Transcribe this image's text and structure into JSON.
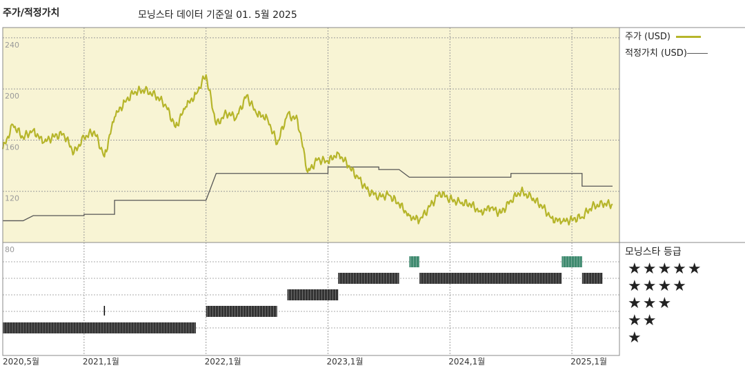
{
  "header": {
    "title": "주가/적정가치",
    "subtitle": "모닝스타 데이터 기준일 01. 5월 2025"
  },
  "legend": {
    "price_label": "주가 (USD)",
    "fair_value_label": "적정가치 (USD)"
  },
  "rating": {
    "title": "모닝스타 등급",
    "levels": [
      "★★★★★",
      "★★★★",
      "★★★",
      "★★",
      "★"
    ]
  },
  "colors": {
    "panel_bg": "#f8f4d4",
    "price": "#b6b52a",
    "fair_value": "#555555",
    "rating_bar": "#333333",
    "rating_5star": "#3f8a6f"
  },
  "chart_data": {
    "type": "line",
    "x_start": "2020-05",
    "x_end": "2025-05",
    "x_ticks": [
      "2020,5월",
      "2021,1월",
      "2022,1월",
      "2023,1월",
      "2024,1월",
      "2025,1월"
    ],
    "y_ticks": [
      80,
      120,
      160,
      200,
      240
    ],
    "ylim": [
      80,
      248
    ],
    "grid": true,
    "legend_position": "right",
    "series": [
      {
        "name": "주가 (USD)",
        "points": [
          [
            "2020-05",
            153
          ],
          [
            "2020-06",
            172
          ],
          [
            "2020-07",
            162
          ],
          [
            "2020-08",
            168
          ],
          [
            "2020-09",
            158
          ],
          [
            "2020-10",
            163
          ],
          [
            "2020-11",
            165
          ],
          [
            "2020-12",
            150
          ],
          [
            "2021-01",
            162
          ],
          [
            "2021-02",
            167
          ],
          [
            "2021-03",
            147
          ],
          [
            "2021-04",
            178
          ],
          [
            "2021-05",
            190
          ],
          [
            "2021-06",
            198
          ],
          [
            "2021-07",
            199
          ],
          [
            "2021-08",
            195
          ],
          [
            "2021-09",
            188
          ],
          [
            "2021-10",
            170
          ],
          [
            "2021-11",
            186
          ],
          [
            "2021-12",
            196
          ],
          [
            "2022-01",
            211
          ],
          [
            "2022-02",
            172
          ],
          [
            "2022-03",
            181
          ],
          [
            "2022-04",
            178
          ],
          [
            "2022-05",
            195
          ],
          [
            "2022-06",
            180
          ],
          [
            "2022-07",
            178
          ],
          [
            "2022-08",
            157
          ],
          [
            "2022-09",
            180
          ],
          [
            "2022-10",
            176
          ],
          [
            "2022-11",
            135
          ],
          [
            "2022-12",
            145
          ],
          [
            "2023-01",
            143
          ],
          [
            "2023-02",
            150
          ],
          [
            "2023-03",
            140
          ],
          [
            "2023-04",
            130
          ],
          [
            "2023-05",
            120
          ],
          [
            "2023-06",
            116
          ],
          [
            "2023-07",
            117
          ],
          [
            "2023-08",
            110
          ],
          [
            "2023-09",
            101
          ],
          [
            "2023-10",
            97
          ],
          [
            "2023-11",
            108
          ],
          [
            "2023-12",
            119
          ],
          [
            "2024-01",
            114
          ],
          [
            "2024-02",
            111
          ],
          [
            "2024-03",
            110
          ],
          [
            "2024-04",
            104
          ],
          [
            "2024-05",
            107
          ],
          [
            "2024-06",
            103
          ],
          [
            "2024-07",
            113
          ],
          [
            "2024-08",
            120
          ],
          [
            "2024-09",
            115
          ],
          [
            "2024-10",
            109
          ],
          [
            "2024-11",
            99
          ],
          [
            "2024-12",
            96
          ],
          [
            "2025-01",
            98
          ],
          [
            "2025-02",
            100
          ],
          [
            "2025-03",
            108
          ],
          [
            "2025-04",
            110
          ],
          [
            "2025-05",
            110
          ]
        ]
      },
      {
        "name": "적정가치 (USD)",
        "points": [
          [
            "2020-05",
            97
          ],
          [
            "2020-07",
            97
          ],
          [
            "2020-08",
            101
          ],
          [
            "2021-01",
            101
          ],
          [
            "2021-01",
            102
          ],
          [
            "2021-04",
            102
          ],
          [
            "2021-04",
            113
          ],
          [
            "2022-01",
            113
          ],
          [
            "2022-02",
            134
          ],
          [
            "2023-01",
            134
          ],
          [
            "2023-01",
            139
          ],
          [
            "2023-06",
            139
          ],
          [
            "2023-06",
            137
          ],
          [
            "2023-08",
            137
          ],
          [
            "2023-09",
            131
          ],
          [
            "2024-07",
            131
          ],
          [
            "2024-07",
            134
          ],
          [
            "2025-02",
            134
          ],
          [
            "2025-02",
            124
          ],
          [
            "2025-05",
            124
          ]
        ]
      }
    ],
    "star_rating": [
      {
        "start": "2020-05",
        "end": "2021-12",
        "stars": 1
      },
      {
        "start": "2022-01",
        "end": "2022-08",
        "stars": 2
      },
      {
        "start": "2022-09",
        "end": "2023-02",
        "stars": 3
      },
      {
        "start": "2023-02",
        "end": "2023-08",
        "stars": 4
      },
      {
        "start": "2023-09",
        "end": "2023-10",
        "stars": 5
      },
      {
        "start": "2023-10",
        "end": "2024-12",
        "stars": 4
      },
      {
        "start": "2024-12",
        "end": "2025-02",
        "stars": 5
      },
      {
        "start": "2025-02",
        "end": "2025-04",
        "stars": 4
      }
    ]
  }
}
